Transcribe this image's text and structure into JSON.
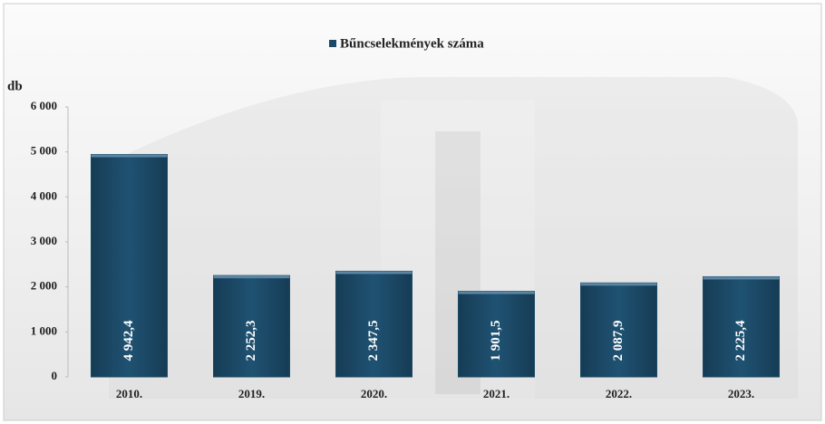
{
  "chart_data": {
    "type": "bar",
    "legend": "Bűncselekmények száma",
    "y_label": "db",
    "categories": [
      "2010.",
      "2019.",
      "2020.",
      "2021.",
      "2022.",
      "2023."
    ],
    "series": [
      {
        "name": "Bűncselekmények száma",
        "color": "#1c4a66",
        "values": [
          4942.4,
          2252.3,
          2347.5,
          1901.5,
          2087.9,
          2225.4
        ],
        "value_labels": [
          "4 942,4",
          "2 252,3",
          "2 347,5",
          "1 901,5",
          "2 087,9",
          "2 225,4"
        ]
      }
    ],
    "ylim": [
      0,
      6000
    ],
    "yticks": [
      0,
      {
        "value": 1000,
        "label": "1 000"
      },
      {
        "value": 2000,
        "label": "2 000"
      },
      {
        "value": 3000,
        "label": "3 000"
      },
      {
        "value": 4000,
        "label": "4 000"
      },
      {
        "value": 5000,
        "label": "5 000"
      },
      {
        "value": 6000,
        "label": "6 000"
      }
    ],
    "grid": false
  }
}
